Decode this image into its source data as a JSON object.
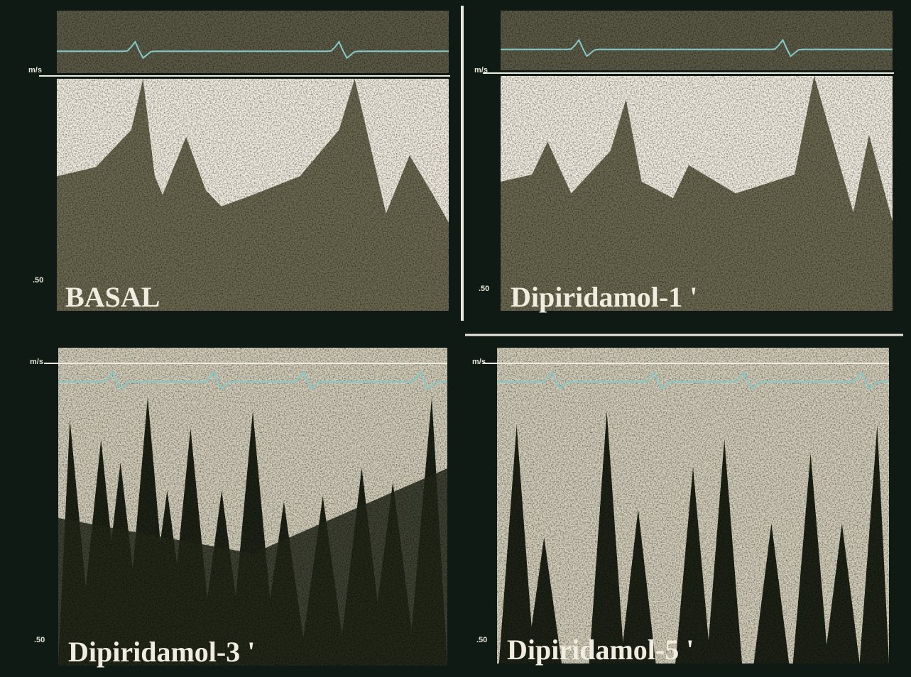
{
  "panels": [
    {
      "label": "BASAL",
      "unit": "m/s",
      "scale": ".50"
    },
    {
      "label": "Dipiridamol-1 '",
      "unit": "m/s",
      "scale": ".50"
    },
    {
      "label": "Dipiridamol-3 '",
      "unit": "m/s",
      "scale": ".50"
    },
    {
      "label": "Dipiridamol-5 '",
      "unit": "m/s",
      "scale": ".50"
    }
  ]
}
